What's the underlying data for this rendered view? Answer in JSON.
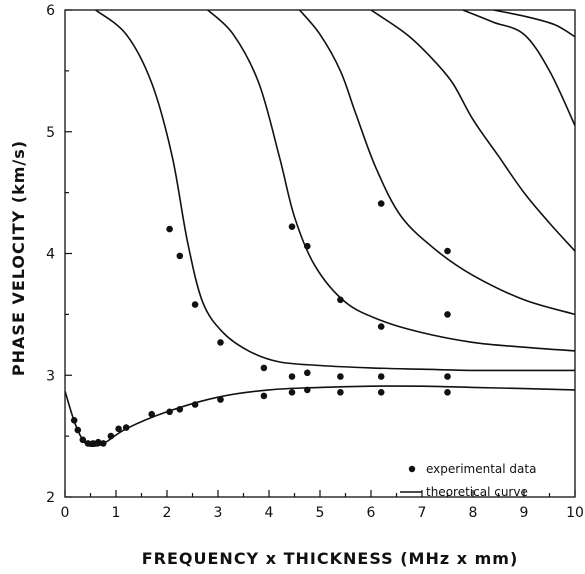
{
  "chart_data": {
    "type": "scatter",
    "title": "",
    "xlabel": "FREQUENCY x THICKNESS (MHz x mm)",
    "ylabel": "PHASE VELOCITY (km/s)",
    "xlim": [
      0,
      10
    ],
    "ylim": [
      2,
      6
    ],
    "x_ticks": [
      "0",
      "1",
      "2",
      "3",
      "4",
      "5",
      "6",
      "7",
      "8",
      "9",
      "10"
    ],
    "y_ticks": [
      "2",
      "3",
      "4",
      "5",
      "6"
    ],
    "grid": false,
    "legend_position": "bottom-right",
    "legend": [
      {
        "symbol": "dot",
        "label": "experimental data"
      },
      {
        "symbol": "line",
        "label": "theoretical curve"
      }
    ],
    "series": [
      {
        "name": "experimental data",
        "kind": "points",
        "points": [
          [
            0.18,
            2.63
          ],
          [
            0.25,
            2.55
          ],
          [
            0.35,
            2.47
          ],
          [
            0.45,
            2.44
          ],
          [
            0.55,
            2.44
          ],
          [
            0.65,
            2.45
          ],
          [
            0.75,
            2.44
          ],
          [
            0.9,
            2.5
          ],
          [
            1.05,
            2.56
          ],
          [
            1.2,
            2.57
          ],
          [
            1.7,
            2.68
          ],
          [
            2.05,
            2.7
          ],
          [
            2.25,
            2.72
          ],
          [
            2.55,
            2.76
          ],
          [
            3.05,
            2.8
          ],
          [
            3.9,
            2.83
          ],
          [
            4.45,
            2.86
          ],
          [
            4.75,
            2.88
          ],
          [
            5.4,
            2.86
          ],
          [
            6.2,
            2.86
          ],
          [
            7.5,
            2.86
          ],
          [
            3.9,
            3.06
          ],
          [
            4.45,
            2.99
          ],
          [
            4.75,
            3.02
          ],
          [
            5.4,
            2.99
          ],
          [
            6.2,
            2.99
          ],
          [
            7.5,
            2.99
          ],
          [
            2.05,
            4.2
          ],
          [
            2.25,
            3.98
          ],
          [
            2.55,
            3.58
          ],
          [
            3.05,
            3.27
          ],
          [
            4.45,
            4.22
          ],
          [
            4.75,
            4.06
          ],
          [
            5.4,
            3.62
          ],
          [
            6.2,
            3.4
          ],
          [
            6.2,
            4.41
          ],
          [
            7.5,
            4.02
          ],
          [
            7.5,
            3.5
          ]
        ]
      },
      {
        "name": "theoretical curve",
        "kind": "curves",
        "curves": [
          [
            [
              0,
              2.87
            ],
            [
              0.2,
              2.6
            ],
            [
              0.4,
              2.44
            ],
            [
              0.6,
              2.42
            ],
            [
              0.8,
              2.45
            ],
            [
              1.2,
              2.56
            ],
            [
              2,
              2.7
            ],
            [
              3,
              2.82
            ],
            [
              4,
              2.88
            ],
            [
              5,
              2.9
            ],
            [
              6,
              2.91
            ],
            [
              7,
              2.91
            ],
            [
              8,
              2.9
            ],
            [
              9,
              2.89
            ],
            [
              10,
              2.88
            ]
          ],
          [
            [
              0.6,
              6
            ],
            [
              1.2,
              5.8
            ],
            [
              1.7,
              5.4
            ],
            [
              2.1,
              4.8
            ],
            [
              2.4,
              4.1
            ],
            [
              2.7,
              3.6
            ],
            [
              3.1,
              3.35
            ],
            [
              3.6,
              3.2
            ],
            [
              4.2,
              3.11
            ],
            [
              5,
              3.08
            ],
            [
              6,
              3.06
            ],
            [
              7,
              3.05
            ],
            [
              8,
              3.04
            ],
            [
              9,
              3.04
            ],
            [
              10,
              3.04
            ]
          ],
          [
            [
              2.8,
              6
            ],
            [
              3.3,
              5.8
            ],
            [
              3.8,
              5.4
            ],
            [
              4.2,
              4.8
            ],
            [
              4.5,
              4.3
            ],
            [
              4.9,
              3.9
            ],
            [
              5.5,
              3.6
            ],
            [
              6.2,
              3.45
            ],
            [
              7,
              3.35
            ],
            [
              8,
              3.27
            ],
            [
              9,
              3.23
            ],
            [
              10,
              3.2
            ]
          ],
          [
            [
              4.6,
              6
            ],
            [
              5,
              5.8
            ],
            [
              5.4,
              5.5
            ],
            [
              5.7,
              5.15
            ],
            [
              6.1,
              4.7
            ],
            [
              6.6,
              4.3
            ],
            [
              7.3,
              4.02
            ],
            [
              8,
              3.82
            ],
            [
              9,
              3.62
            ],
            [
              10,
              3.5
            ]
          ],
          [
            [
              6,
              6
            ],
            [
              6.7,
              5.8
            ],
            [
              7.2,
              5.6
            ],
            [
              7.6,
              5.4
            ],
            [
              8,
              5.1
            ],
            [
              8.5,
              4.8
            ],
            [
              9,
              4.5
            ],
            [
              9.5,
              4.25
            ],
            [
              10,
              4.02
            ]
          ],
          [
            [
              7.8,
              6
            ],
            [
              8.4,
              5.9
            ],
            [
              9,
              5.8
            ],
            [
              9.5,
              5.5
            ],
            [
              10,
              5.05
            ]
          ],
          [
            [
              8.4,
              6
            ],
            [
              9,
              5.95
            ],
            [
              9.6,
              5.88
            ],
            [
              10,
              5.78
            ]
          ]
        ]
      }
    ]
  }
}
